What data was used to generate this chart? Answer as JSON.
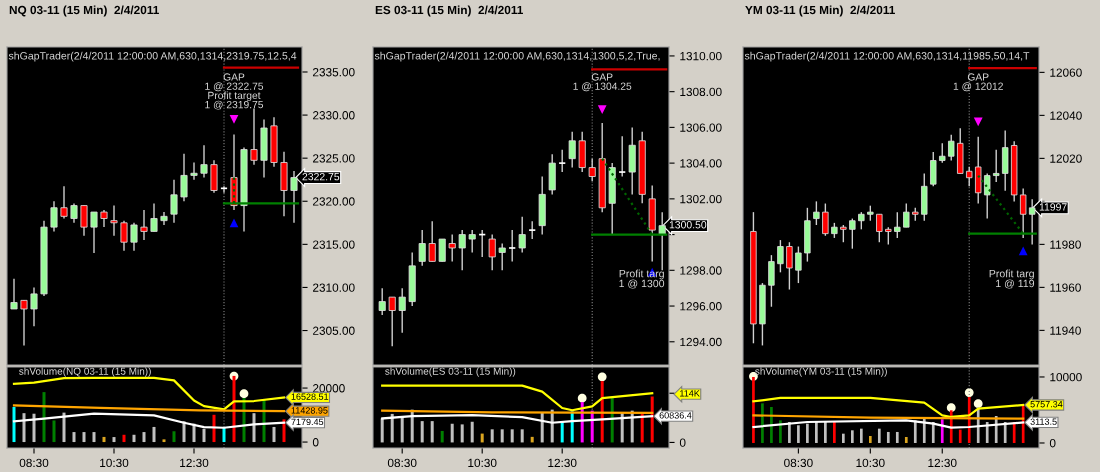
{
  "chart_data": [
    {
      "type": "candlestick",
      "title": "NQ 03-11 (15 Min)  2/4/2011",
      "subtitle": "shGapTrader(2/4/2011 12:00:00 AM,630,1314,2319.75,12.5,4",
      "x": [
        8,
        8.25,
        8.5,
        8.75,
        9,
        9.25,
        9.5,
        9.75,
        10,
        10.25,
        10.5,
        10.75,
        11,
        11.25,
        11.5,
        11.75,
        12,
        12.25,
        12.5,
        12.75,
        13,
        13.25,
        13.5,
        13.75,
        14,
        14.25,
        14.5,
        14.75,
        15
      ],
      "ohlc": [
        [
          2307.5,
          2311,
          2307.5,
          2308.25
        ],
        [
          2308.5,
          2308.5,
          2303.25,
          2307.5
        ],
        [
          2307.5,
          2310,
          2305.5,
          2309.25
        ],
        [
          2309.25,
          2317.75,
          2309,
          2317
        ],
        [
          2317,
          2320,
          2316.5,
          2319.25
        ],
        [
          2319.25,
          2321.75,
          2318,
          2318.25
        ],
        [
          2318,
          2319.75,
          2317.5,
          2319.5
        ],
        [
          2319.5,
          2319.5,
          2316,
          2317
        ],
        [
          2317,
          2318.75,
          2314,
          2318.75
        ],
        [
          2318.75,
          2319,
          2317,
          2318
        ],
        [
          2317.75,
          2319.5,
          2316,
          2317.5
        ],
        [
          2317.5,
          2317.75,
          2314.25,
          2315.25
        ],
        [
          2315.25,
          2317.5,
          2314.25,
          2317.25
        ],
        [
          2317,
          2319,
          2315.5,
          2316.5
        ],
        [
          2316.5,
          2319.75,
          2316.5,
          2318
        ],
        [
          2317.75,
          2318.75,
          2317.25,
          2318.25
        ],
        [
          2318.5,
          2322.5,
          2317.5,
          2320.75
        ],
        [
          2320.5,
          2325.5,
          2320,
          2323
        ],
        [
          2323,
          2324.5,
          2322.5,
          2323.25
        ],
        [
          2323.25,
          2326.5,
          2322.75,
          2324.25
        ],
        [
          2324.25,
          2324.75,
          2321,
          2321.25
        ],
        [
          2321.5,
          2321.75,
          2321,
          2321.5
        ],
        [
          2322.75,
          2327.75,
          2319,
          2319.5
        ],
        [
          2319.5,
          2326.25,
          2316.5,
          2326
        ],
        [
          2326,
          2330.75,
          2324.25,
          2324.75
        ],
        [
          2324.75,
          2329.5,
          2322.75,
          2328.5
        ],
        [
          2328.75,
          2329.75,
          2324,
          2324.5
        ],
        [
          2324.5,
          2325.75,
          2318.25,
          2321.25
        ],
        [
          2321.25,
          2323.5,
          2317.5,
          2322.75
        ]
      ],
      "colors": [
        "#98fb98",
        "#ff0000",
        "#98fb98",
        "#98fb98",
        "#98fb98",
        "#ff0000",
        "#98fb98",
        "#ff0000",
        "#98fb98",
        "#ff0000",
        "#ff0000",
        "#ff0000",
        "#98fb98",
        "#ff0000",
        "#98fb98",
        "#98fb98",
        "#98fb98",
        "#98fb98",
        "#98fb98",
        "#98fb98",
        "#ff0000",
        "#ffffff",
        "#ff0000",
        "#98fb98",
        "#ff0000",
        "#98fb98",
        "#ff0000",
        "#ff0000",
        "#98fb98"
      ],
      "value_labels": [
        null,
        null,
        null,
        null,
        null,
        null,
        null,
        null,
        null,
        null,
        null,
        null,
        null,
        null,
        null,
        null,
        null,
        null,
        null,
        null,
        null,
        null,
        null,
        null,
        null,
        null,
        null,
        null,
        "2322.75"
      ],
      "series": [
        {
          "type": "line",
          "x": [
            13.25,
            15.1
          ],
          "values": [
            2335.5,
            2335.5
          ],
          "color": "#cc0000",
          "line_style": "solid"
        },
        {
          "type": "line",
          "x": [
            13.25,
            15.1
          ],
          "values": [
            2319.75,
            2319.75
          ],
          "color": "#008000",
          "line_style": "solid"
        },
        {
          "type": "line",
          "x": [
            13.5,
            13.5
          ],
          "values": [
            2322.75,
            2319.75
          ],
          "color": "#006400",
          "line_style": "dotted"
        },
        {
          "type": "scatter",
          "x": [
            13.5
          ],
          "values": [
            2329.5
          ],
          "color": "#ff00ff",
          "marker": "triangle_down"
        },
        {
          "type": "scatter",
          "x": [
            13.5
          ],
          "values": [
            2317.5
          ],
          "color": "#0000ff",
          "marker": "triangle"
        }
      ],
      "ref_lines": [
        {
          "axis": "x",
          "value": 13.25,
          "color": "#808080",
          "line_style": "dotted"
        }
      ],
      "annotations": [
        "GAP\n1 @ 2322.75\nProfit target\n1 @ 2319.75"
      ],
      "xlim": [
        7.825,
        15.2
      ],
      "ylim": [
        2301,
        2337.9
      ],
      "yticks": [
        {
          "value": 2305,
          "label": "2305.00"
        },
        {
          "value": 2310,
          "label": "2310.00"
        },
        {
          "value": 2315,
          "label": "2315.00"
        },
        {
          "value": 2320,
          "label": "2320.00"
        },
        {
          "value": 2325,
          "label": "2325.00"
        },
        {
          "value": 2330,
          "label": "2330.00"
        },
        {
          "value": 2335,
          "label": "2335.00"
        }
      ],
      "tick_labels": "y"
    },
    {
      "type": "candlestick",
      "title": "ES 03-11 (15 Min)  2/4/2011",
      "subtitle": "shGapTrader(2/4/2011 12:00:00 AM,630,1314,1300,5,2,True,",
      "x": [
        8,
        8.25,
        8.5,
        8.75,
        9,
        9.25,
        9.5,
        9.75,
        10,
        10.25,
        10.5,
        10.75,
        11,
        11.25,
        11.5,
        11.75,
        12,
        12.25,
        12.5,
        12.75,
        13,
        13.25,
        13.5,
        13.75,
        14,
        14.25,
        14.5,
        14.75,
        15
      ],
      "ohlc": [
        [
          1295.75,
          1297,
          1295.5,
          1296.25
        ],
        [
          1296.5,
          1296.5,
          1293.75,
          1295.75
        ],
        [
          1295.75,
          1297,
          1294.5,
          1296.5
        ],
        [
          1296.25,
          1299,
          1296,
          1298.25
        ],
        [
          1298.5,
          1300.25,
          1298.25,
          1299.5
        ],
        [
          1299.5,
          1300.75,
          1298.5,
          1298.5
        ],
        [
          1298.5,
          1299.75,
          1298.5,
          1299.75
        ],
        [
          1299.5,
          1300,
          1298.5,
          1299.25
        ],
        [
          1299.25,
          1300.25,
          1298,
          1300
        ],
        [
          1299.75,
          1300.25,
          1299,
          1300
        ],
        [
          1300,
          1300.25,
          1298.75,
          1300
        ],
        [
          1299.75,
          1300,
          1298,
          1298.75
        ],
        [
          1299,
          1299.5,
          1298,
          1299.25
        ],
        [
          1299.25,
          1300.25,
          1298.5,
          1299.25
        ],
        [
          1299.25,
          1301,
          1299,
          1300
        ],
        [
          1300.25,
          1300.75,
          1299.75,
          1300.25
        ],
        [
          1300.5,
          1303.25,
          1300,
          1302.25
        ],
        [
          1302.5,
          1304.5,
          1302.25,
          1304
        ],
        [
          1304,
          1304.75,
          1303.5,
          1304
        ],
        [
          1304.25,
          1305.75,
          1303.75,
          1305.25
        ],
        [
          1305.25,
          1305.75,
          1303.5,
          1303.75
        ],
        [
          1303.75,
          1304.25,
          1303,
          1303.25
        ],
        [
          1304.25,
          1306.25,
          1301.25,
          1301.5
        ],
        [
          1301.75,
          1304,
          1300,
          1303.75
        ],
        [
          1303.5,
          1305.5,
          1303.25,
          1303.5
        ],
        [
          1303.5,
          1306,
          1302.25,
          1305
        ],
        [
          1305.25,
          1305.75,
          1301.75,
          1302.25
        ],
        [
          1302,
          1302.75,
          1298.5,
          1300.25
        ],
        [
          1300,
          1301.25,
          1298,
          1300.5
        ]
      ],
      "colors": [
        "#98fb98",
        "#ff0000",
        "#98fb98",
        "#98fb98",
        "#98fb98",
        "#ff0000",
        "#98fb98",
        "#ff0000",
        "#98fb98",
        "#98fb98",
        "#ffffff",
        "#ff0000",
        "#98fb98",
        "#ffffff",
        "#98fb98",
        "#ffffff",
        "#98fb98",
        "#98fb98",
        "#ffffff",
        "#98fb98",
        "#ff0000",
        "#ff0000",
        "#ff0000",
        "#98fb98",
        "#ffffff",
        "#98fb98",
        "#ff0000",
        "#ff0000",
        "#98fb98"
      ],
      "value_labels": [
        null,
        null,
        null,
        null,
        null,
        null,
        null,
        null,
        null,
        null,
        null,
        null,
        null,
        null,
        null,
        null,
        null,
        null,
        null,
        null,
        null,
        null,
        null,
        null,
        null,
        null,
        null,
        null,
        "1300.50"
      ],
      "series": [
        {
          "type": "line",
          "x": [
            13.25,
            15.1
          ],
          "values": [
            1309.25,
            1309.25
          ],
          "color": "#cc0000",
          "line_style": "solid"
        },
        {
          "type": "line",
          "x": [
            13.25,
            15.1
          ],
          "values": [
            1300,
            1300
          ],
          "color": "#008000",
          "line_style": "solid"
        },
        {
          "type": "line",
          "x": [
            13.5,
            14.75
          ],
          "values": [
            1304.25,
            1300
          ],
          "color": "#006400",
          "line_style": "dotted"
        },
        {
          "type": "scatter",
          "x": [
            13.5
          ],
          "values": [
            1307
          ],
          "color": "#ff00ff",
          "marker": "triangle_down"
        },
        {
          "type": "scatter",
          "x": [
            14.75
          ],
          "values": [
            1297.9
          ],
          "color": "#0000ff",
          "marker": "triangle"
        }
      ],
      "ref_lines": [
        {
          "axis": "x",
          "value": 13.25,
          "color": "#808080",
          "line_style": "dotted"
        }
      ],
      "annotations": [
        "GAP\n1 @ 1304.25",
        "Profit targ\n1 @ 1300"
      ],
      "xlim": [
        7.77,
        15.17
      ],
      "ylim": [
        1292.7,
        1310.5
      ],
      "yticks": [
        {
          "value": 1294,
          "label": "1294.00"
        },
        {
          "value": 1296,
          "label": "1296.00"
        },
        {
          "value": 1298,
          "label": "1298.00"
        },
        {
          "value": 1300,
          "label": null
        },
        {
          "value": 1302,
          "label": "1302.00"
        },
        {
          "value": 1304,
          "label": "1304.00"
        },
        {
          "value": 1306,
          "label": "1306.00"
        },
        {
          "value": 1308,
          "label": "1308.00"
        },
        {
          "value": 1310,
          "label": "1310.00"
        }
      ],
      "tick_labels": "y"
    },
    {
      "type": "candlestick",
      "title": "YM 03-11 (15 Min)  2/4/2011",
      "subtitle": "shGapTrader(2/4/2011 12:00:00 AM,630,1314,11985,50,14,T",
      "x": [
        7.25,
        7.5,
        7.75,
        8,
        8.25,
        8.5,
        8.75,
        9,
        9.25,
        9.5,
        9.75,
        10,
        10.25,
        10.5,
        10.75,
        11,
        11.25,
        11.5,
        11.75,
        12,
        12.25,
        12.5,
        12.75,
        13,
        13.25,
        13.5,
        13.75,
        14,
        14.25,
        14.5,
        14.75,
        15
      ],
      "ohlc": [
        [
          11986,
          11995,
          11934,
          11943
        ],
        [
          11943,
          11962,
          11933,
          11961
        ],
        [
          11961,
          11975,
          11951,
          11972
        ],
        [
          11971,
          11982,
          11967,
          11979
        ],
        [
          11979,
          11981,
          11959,
          11969
        ],
        [
          11968,
          11979,
          11962,
          11976
        ],
        [
          11976,
          11997,
          11972,
          11991
        ],
        [
          11992,
          12000,
          11989,
          11995
        ],
        [
          11995,
          11999,
          11984,
          11985
        ],
        [
          11985,
          11990,
          11983,
          11988
        ],
        [
          11988,
          11989,
          11981,
          11987
        ],
        [
          11987,
          11992,
          11978,
          11991
        ],
        [
          11991,
          11995,
          11987,
          11994
        ],
        [
          11994,
          11998,
          11991,
          11995
        ],
        [
          11994,
          11994,
          11981,
          11986
        ],
        [
          11987,
          11988,
          11980,
          11986
        ],
        [
          11986,
          11995,
          11983,
          11988
        ],
        [
          11988,
          11999,
          11988,
          11995
        ],
        [
          11995,
          11997,
          11991,
          11994
        ],
        [
          11994,
          12013,
          11991,
          12007
        ],
        [
          12008,
          12023,
          12007,
          12019
        ],
        [
          12019,
          12027,
          12018,
          12021
        ],
        [
          12021,
          12031,
          12019,
          12028
        ],
        [
          12027,
          12034,
          12013,
          12013
        ],
        [
          12014,
          12016,
          12007,
          12011
        ],
        [
          12016,
          12030,
          11999,
          12004
        ],
        [
          12003,
          12013,
          11992,
          12012
        ],
        [
          12012,
          12024,
          12009,
          12013
        ],
        [
          12013,
          12033,
          12005,
          12025
        ],
        [
          12026,
          12028,
          12000,
          12003
        ],
        [
          12003,
          12006,
          11983,
          11994
        ],
        [
          11994,
          12001,
          11980,
          11997
        ]
      ],
      "colors": [
        "#ff0000",
        "#98fb98",
        "#98fb98",
        "#98fb98",
        "#ff0000",
        "#98fb98",
        "#98fb98",
        "#98fb98",
        "#ff0000",
        "#98fb98",
        "#ff0000",
        "#98fb98",
        "#98fb98",
        "#98fb98",
        "#ff0000",
        "#ff0000",
        "#98fb98",
        "#98fb98",
        "#ff0000",
        "#98fb98",
        "#98fb98",
        "#98fb98",
        "#98fb98",
        "#ff0000",
        "#ff0000",
        "#ff0000",
        "#98fb98",
        "#98fb98",
        "#98fb98",
        "#ff0000",
        "#ff0000",
        "#98fb98"
      ],
      "value_labels": [
        null,
        null,
        null,
        null,
        null,
        null,
        null,
        null,
        null,
        null,
        null,
        null,
        null,
        null,
        null,
        null,
        null,
        null,
        null,
        null,
        null,
        null,
        null,
        null,
        null,
        null,
        null,
        null,
        null,
        null,
        null,
        "11997"
      ],
      "series": [
        {
          "type": "line",
          "x": [
            13.25,
            15.1
          ],
          "values": [
            12062,
            12062
          ],
          "color": "#cc0000",
          "line_style": "solid"
        },
        {
          "type": "line",
          "x": [
            13.25,
            15.1
          ],
          "values": [
            11985,
            11985
          ],
          "color": "#008000",
          "line_style": "solid"
        },
        {
          "type": "line",
          "x": [
            13.5,
            14.75
          ],
          "values": [
            12012,
            11985
          ],
          "color": "#006400",
          "line_style": "dotted"
        },
        {
          "type": "scatter",
          "x": [
            13.5
          ],
          "values": [
            12037
          ],
          "color": "#ff00ff",
          "marker": "triangle_down"
        },
        {
          "type": "scatter",
          "x": [
            14.75
          ],
          "values": [
            11977
          ],
          "color": "#0000ff",
          "marker": "triangle"
        }
      ],
      "ref_lines": [
        {
          "axis": "x",
          "value": 13.25,
          "color": "#808080",
          "line_style": "dotted"
        }
      ],
      "annotations": [
        "GAP\n1 @ 12012",
        "Profit targ\n1 @ 119"
      ],
      "xlim": [
        6.96,
        15.19
      ],
      "ylim": [
        11923.9,
        12071.8
      ],
      "yticks": [
        11940,
        11960,
        11980,
        {
          "value": 12000,
          "label": null
        },
        12020,
        12040,
        12060
      ],
      "tick_labels": "y"
    },
    {
      "type": "bar",
      "title": "shVolume(NQ 03-11 (15 Min))",
      "series": [
        {
          "type": "bar",
          "x": [
            8,
            8.25,
            8.5,
            8.75,
            9,
            9.25,
            9.5,
            9.75,
            10,
            10.25,
            10.5,
            10.75,
            11,
            11.25,
            11.5,
            11.75,
            12,
            12.25,
            12.5,
            12.75,
            13,
            13.25,
            13.5,
            13.75,
            14,
            14.25,
            14.5,
            14.75
          ],
          "values": [
            13000,
            10700,
            10500,
            18500,
            8000,
            10900,
            3700,
            3700,
            3700,
            1900,
            1850,
            2700,
            2700,
            3700,
            5600,
            1000,
            4000,
            7700,
            6800,
            4900,
            10100,
            5400,
            24500,
            16300,
            10700,
            15700,
            5600,
            8400
          ],
          "colors": [
            "#00ffff",
            "#c0c0c0",
            "#c0c0c0",
            "#008000",
            "#008000",
            "#c0c0c0",
            "#c0c0c0",
            "#c0c0c0",
            "#c0c0c0",
            "#daa520",
            "#c0c0c0",
            "#ff0000",
            "#c0c0c0",
            "#c0c0c0",
            "#c0c0c0",
            "#daa520",
            "#008000",
            "#c0c0c0",
            "#c0c0c0",
            "#c0c0c0",
            "#ff0000",
            "#00ffff",
            "#ff0000",
            "#008000",
            "#c0c0c0",
            "#008000",
            "#c0c0c0",
            "#ff0000"
          ]
        },
        {
          "type": "line",
          "x": [
            8,
            8.5,
            9.25,
            10,
            10.75,
            11.5,
            12,
            12.5,
            12.75,
            13.25,
            13.5,
            14,
            14.75
          ],
          "values": [
            21600,
            22000,
            23700,
            23800,
            23800,
            23800,
            22850,
            15400,
            13300,
            12100,
            15100,
            15200,
            16528.51
          ],
          "color": "#ffff00",
          "value_labels": [
            null,
            null,
            null,
            null,
            null,
            null,
            null,
            null,
            null,
            null,
            null,
            null,
            "16528.51"
          ]
        },
        {
          "type": "line",
          "x": [
            8,
            10.15,
            12.65,
            14.75
          ],
          "values": [
            13600,
            12700,
            11700,
            11428.95
          ],
          "color": "#ffa500",
          "value_labels": [
            null,
            null,
            null,
            "11428.95"
          ]
        },
        {
          "type": "line",
          "x": [
            8,
            8.75,
            10,
            11.5,
            12.25,
            12.75,
            13.25,
            14,
            14.75
          ],
          "values": [
            7660,
            8650,
            10500,
            9880,
            7160,
            5560,
            5300,
            6550,
            7179.45
          ],
          "color": "#ffffff",
          "value_labels": [
            null,
            null,
            null,
            null,
            null,
            null,
            null,
            null,
            "7179.45"
          ]
        },
        {
          "type": "scatter",
          "x": [
            13.5,
            13.75
          ],
          "values": [
            24450,
            17900
          ],
          "color": "#ffffe0",
          "marker": "circle"
        }
      ],
      "ref_lines": [
        {
          "axis": "x",
          "value": 13.25,
          "color": "#808080",
          "line_style": "dotted"
        }
      ],
      "xlim": [
        7.825,
        15.2
      ],
      "ylim": [
        -2200,
        27800
      ],
      "xticks": [
        {
          "value": 8.5,
          "label": "08:30"
        },
        {
          "value": 10.5,
          "label": "10:30"
        },
        {
          "value": 12.5,
          "label": "12:30"
        }
      ],
      "yticks": [
        0,
        20000
      ]
    },
    {
      "type": "bar",
      "title": "shVolume(ES 03-11 (15 Min))",
      "x": [
        8,
        8.25,
        8.5,
        8.75,
        9,
        9.25,
        9.5,
        9.75,
        10,
        10.25,
        10.5,
        10.75,
        11,
        11.25,
        11.5,
        11.75,
        12,
        12.25,
        12.5,
        12.75,
        13,
        13.25,
        13.5,
        13.75,
        14,
        14.25,
        14.5,
        14.75
      ],
      "values": [
        55500,
        66100,
        60800,
        76000,
        49400,
        49400,
        26600,
        43300,
        41800,
        47900,
        20500,
        30400,
        30400,
        30400,
        30400,
        12900,
        69900,
        76000,
        47900,
        72200,
        93500,
        73700,
        142100,
        104100,
        68400,
        73700,
        66100,
        106400
      ],
      "colors": [
        "#c0c0c0",
        "#c0c0c0",
        "#c0c0c0",
        "#c0c0c0",
        "#c0c0c0",
        "#c0c0c0",
        "#008000",
        "#c0c0c0",
        "#c0c0c0",
        "#c0c0c0",
        "#daa520",
        "#c0c0c0",
        "#c0c0c0",
        "#c0c0c0",
        "#c0c0c0",
        "#daa520",
        "#c0c0c0",
        "#c0c0c0",
        "#00ffff",
        "#00ffff",
        "#ff00ff",
        "#ff00ff",
        "#ff0000",
        "#008000",
        "#c0c0c0",
        "#c0c0c0",
        "#ff0000",
        "#ff0000"
      ],
      "series": [
        {
          "type": "line",
          "x": [
            8,
            11.5,
            12,
            12.5,
            12.75,
            13.25,
            13.5,
            14.75
          ],
          "values": [
            131500,
            131500,
            117800,
            79800,
            74500,
            83600,
            102600,
            114000
          ],
          "color": "#ffff00"
        },
        {
          "type": "line",
          "x": [
            8,
            10.75,
            14.75
          ],
          "values": [
            73700,
            69900,
            68400
          ],
          "color": "#ffa500"
        },
        {
          "type": "line",
          "x": [
            8,
            8.75,
            10.25,
            11.5,
            12.25,
            12.75,
            13.5,
            14.75
          ],
          "values": [
            55500,
            60800,
            63100,
            58500,
            45600,
            49400,
            53200,
            60836.4
          ],
          "color": "#ffffff",
          "value_labels": [
            null,
            null,
            null,
            null,
            null,
            null,
            null,
            "60836.4"
          ]
        },
        {
          "type": "scatter",
          "x": [
            13,
            13.5
          ],
          "values": [
            102600,
            152000
          ],
          "color": "#ffffe0",
          "marker": "circle"
        }
      ],
      "ref_lines": [
        {
          "axis": "x",
          "value": 13.25,
          "color": "#808080",
          "line_style": "dotted"
        }
      ],
      "xlim": [
        7.77,
        15.17
      ],
      "ylim": [
        -12900,
        174800
      ],
      "xticks": [
        {
          "value": 8.5,
          "label": "08:30"
        },
        {
          "value": 10.5,
          "label": "10:30"
        },
        {
          "value": 12.5,
          "label": "12:30"
        }
      ],
      "yticks": [
        0,
        {
          "value": 114000,
          "label": "114K"
        }
      ]
    },
    {
      "type": "bar",
      "title": "shVolume(YM 03-11 (15 Min))",
      "series": [
        {
          "type": "bar",
          "x": [
            7.25,
            7.5,
            7.75,
            8,
            8.25,
            8.5,
            8.75,
            9,
            9.25,
            9.5,
            9.75,
            10,
            10.25,
            10.5,
            10.75,
            11,
            11.25,
            11.5,
            11.75,
            12,
            12.25,
            12.5,
            12.75,
            13,
            13.25,
            13.5,
            13.75,
            14,
            14.25,
            14.5,
            14.75
          ],
          "values": [
            10000,
            6000,
            5450,
            3430,
            3180,
            2680,
            2930,
            3180,
            3180,
            3280,
            1410,
            1920,
            2170,
            1060,
            2170,
            1670,
            1670,
            910,
            3430,
            3790,
            3180,
            3590,
            4950,
            2020,
            6970,
            5450,
            3180,
            4090,
            3180,
            3180,
            5610
          ],
          "colors": [
            "#ff0000",
            "#008000",
            "#008000",
            "#008000",
            "#c0c0c0",
            "#c0c0c0",
            "#c0c0c0",
            "#c0c0c0",
            "#c0c0c0",
            "#ff0000",
            "#c0c0c0",
            "#c0c0c0",
            "#c0c0c0",
            "#daa520",
            "#c0c0c0",
            "#c0c0c0",
            "#c0c0c0",
            "#daa520",
            "#c0c0c0",
            "#c0c0c0",
            "#c0c0c0",
            "#ff00ff",
            "#ff0000",
            "#ff0000",
            "#ff0000",
            "#c0c0c0",
            "#c0c0c0",
            "#c0c0c0",
            "#c0c0c0",
            "#ff0000",
            "#ff0000"
          ]
        },
        {
          "type": "line",
          "x": [
            7.25,
            8,
            10.5,
            12,
            12.5,
            12.75,
            13.25,
            13.5,
            14.75
          ],
          "values": [
            6310,
            6820,
            6820,
            6110,
            4190,
            3940,
            4190,
            5200,
            5757.34
          ],
          "color": "#ffff00",
          "value_labels": [
            null,
            null,
            null,
            null,
            null,
            null,
            null,
            null,
            "5757.34"
          ]
        },
        {
          "type": "line",
          "x": [
            7.25,
            10.5,
            14.75
          ],
          "values": [
            4190,
            3840,
            3690
          ],
          "color": "#ffa500"
        },
        {
          "type": "line",
          "x": [
            7.25,
            8.75,
            11.5,
            12.25,
            12.75,
            13.25,
            14.75
          ],
          "values": [
            2420,
            3180,
            3430,
            2930,
            2320,
            2420,
            3113.5
          ],
          "color": "#ffffff",
          "value_labels": [
            null,
            null,
            null,
            null,
            null,
            null,
            "3113.5"
          ]
        },
        {
          "type": "scatter",
          "x": [
            7.25,
            12.75,
            13.25,
            13.5
          ],
          "values": [
            10100,
            5350,
            7630,
            5960
          ],
          "color": "#ffffe0",
          "marker": "circle"
        }
      ],
      "ref_lines": [
        {
          "axis": "x",
          "value": 13.25,
          "color": "#808080",
          "line_style": "dotted"
        }
      ],
      "xlim": [
        6.96,
        15.19
      ],
      "ylim": [
        -760,
        11510
      ],
      "xticks": [
        {
          "value": 8.5,
          "label": "08:30"
        },
        {
          "value": 10.5,
          "label": "10:30"
        },
        {
          "value": 12.5,
          "label": "12:30"
        }
      ],
      "yticks": [
        0,
        10000
      ]
    }
  ]
}
